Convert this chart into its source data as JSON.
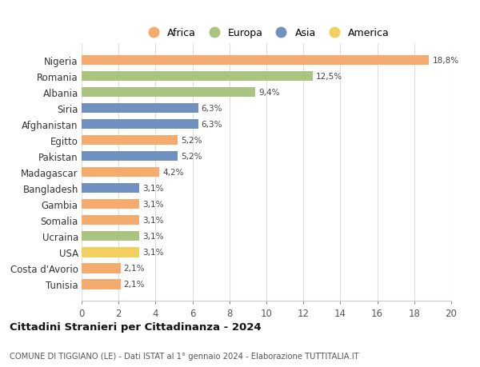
{
  "countries": [
    "Nigeria",
    "Romania",
    "Albania",
    "Siria",
    "Afghanistan",
    "Egitto",
    "Pakistan",
    "Madagascar",
    "Bangladesh",
    "Gambia",
    "Somalia",
    "Ucraina",
    "USA",
    "Costa d'Avorio",
    "Tunisia"
  ],
  "values": [
    18.8,
    12.5,
    9.4,
    6.3,
    6.3,
    5.2,
    5.2,
    4.2,
    3.1,
    3.1,
    3.1,
    3.1,
    3.1,
    2.1,
    2.1
  ],
  "labels": [
    "18,8%",
    "12,5%",
    "9,4%",
    "6,3%",
    "6,3%",
    "5,2%",
    "5,2%",
    "4,2%",
    "3,1%",
    "3,1%",
    "3,1%",
    "3,1%",
    "3,1%",
    "2,1%",
    "2,1%"
  ],
  "continents": [
    "Africa",
    "Europa",
    "Europa",
    "Asia",
    "Asia",
    "Africa",
    "Asia",
    "Africa",
    "Asia",
    "Africa",
    "Africa",
    "Europa",
    "America",
    "Africa",
    "Africa"
  ],
  "colors": {
    "Africa": "#F5AA6E",
    "Europa": "#A8C47F",
    "Asia": "#7090C0",
    "America": "#F2D060"
  },
  "legend_order": [
    "Africa",
    "Europa",
    "Asia",
    "America"
  ],
  "title": "Cittadini Stranieri per Cittadinanza - 2024",
  "subtitle": "COMUNE DI TIGGIANO (LE) - Dati ISTAT al 1° gennaio 2024 - Elaborazione TUTTITALIA.IT",
  "xlim": [
    0,
    20
  ],
  "xticks": [
    0,
    2,
    4,
    6,
    8,
    10,
    12,
    14,
    16,
    18,
    20
  ],
  "bg_color": "#ffffff",
  "grid_color": "#dddddd",
  "bar_height": 0.62
}
